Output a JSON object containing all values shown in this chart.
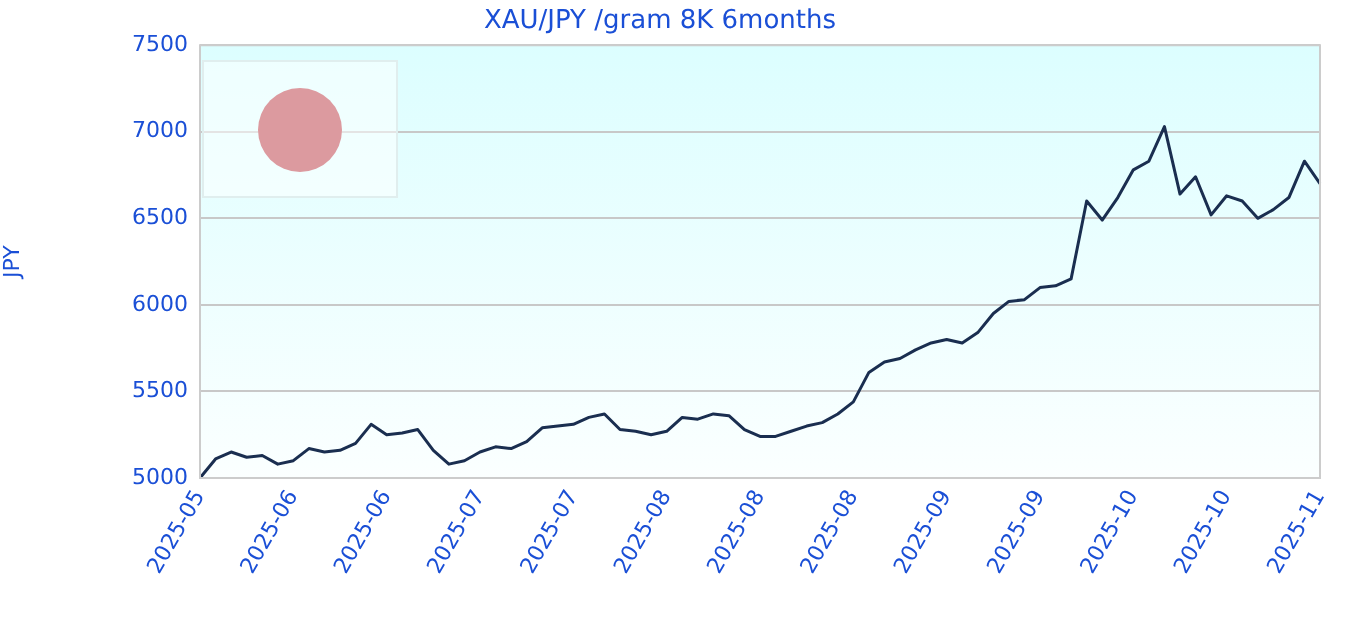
{
  "chart_data": {
    "type": "line",
    "title": "XAU/JPY /gram 8K 6months",
    "ylabel": "JPY",
    "categories": [
      "2025-05",
      null,
      null,
      null,
      null,
      null,
      "2025-06",
      null,
      null,
      null,
      null,
      null,
      "2025-06",
      null,
      null,
      null,
      null,
      null,
      "2025-07",
      null,
      null,
      null,
      null,
      null,
      "2025-07",
      null,
      null,
      null,
      null,
      null,
      "2025-08",
      null,
      null,
      null,
      null,
      null,
      "2025-08",
      null,
      null,
      null,
      null,
      null,
      "2025-08",
      null,
      null,
      null,
      null,
      null,
      "2025-09",
      null,
      null,
      null,
      null,
      null,
      "2025-09",
      null,
      null,
      null,
      null,
      null,
      "2025-10",
      null,
      null,
      null,
      null,
      null,
      "2025-10",
      null,
      null,
      null,
      null,
      null,
      "2025-11"
    ],
    "series": [
      {
        "color": "#1a2e50",
        "values": [
          5000,
          5110,
          5150,
          5120,
          5130,
          5080,
          5100,
          5170,
          5150,
          5160,
          5200,
          5310,
          5250,
          5260,
          5280,
          5160,
          5080,
          5100,
          5150,
          5180,
          5170,
          5210,
          5290,
          5300,
          5310,
          5350,
          5370,
          5280,
          5270,
          5250,
          5270,
          5350,
          5340,
          5370,
          5360,
          5280,
          5240,
          5240,
          5270,
          5300,
          5320,
          5370,
          5440,
          5610,
          5670,
          5690,
          5740,
          5780,
          5800,
          5780,
          5840,
          5950,
          6020,
          6030,
          6100,
          6110,
          6150,
          6600,
          6490,
          6620,
          6780,
          6830,
          7030,
          6640,
          6740,
          6520,
          6630,
          6600,
          6500,
          6550,
          6620,
          6830,
          6700
        ]
      }
    ],
    "ylim": [
      5000,
      7500
    ],
    "yticks": [
      5000,
      5500,
      6000,
      6500,
      7000,
      7500
    ],
    "grid": "y",
    "legend": false,
    "marker": "none",
    "line_style": "solid"
  }
}
